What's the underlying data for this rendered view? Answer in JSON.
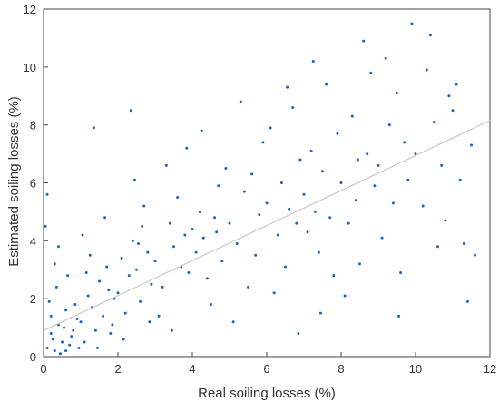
{
  "chart_data": {
    "type": "scatter",
    "xlabel": "Real soiling losses (%)",
    "ylabel": "Estimated soiling losses (%)",
    "color": "#1565c0",
    "xlim": [
      0,
      12
    ],
    "ylim": [
      0,
      12
    ],
    "xticks": [
      0,
      2,
      4,
      6,
      8,
      10,
      12
    ],
    "yticks": [
      0,
      2,
      4,
      6,
      8,
      10,
      12
    ],
    "x": [
      0.1,
      0.2,
      0.3,
      0.4,
      0.5,
      0.6,
      0.7,
      0.8,
      0.9,
      0.15,
      0.25,
      0.35,
      0.45,
      0.55,
      0.65,
      0.75,
      0.85,
      0.95,
      0.05,
      0.1,
      0.3,
      0.2,
      0.6,
      0.4,
      1.0,
      1.1,
      1.2,
      1.3,
      1.4,
      1.5,
      1.6,
      1.7,
      1.8,
      1.9,
      1.05,
      1.25,
      1.45,
      1.65,
      1.85,
      1.35,
      1.15,
      1.75,
      2.0,
      2.1,
      2.2,
      2.3,
      2.4,
      2.5,
      2.6,
      2.7,
      2.8,
      2.9,
      2.15,
      2.45,
      2.65,
      2.85,
      2.35,
      2.55,
      3.0,
      3.2,
      3.4,
      3.5,
      3.6,
      3.8,
      3.9,
      3.1,
      3.3,
      3.7,
      3.85,
      3.45,
      4.0,
      4.1,
      4.2,
      4.3,
      4.4,
      4.6,
      4.7,
      4.8,
      4.9,
      4.5,
      4.25,
      4.65,
      5.0,
      5.2,
      5.4,
      5.5,
      5.6,
      5.8,
      5.9,
      5.1,
      5.3,
      5.7,
      6.0,
      6.1,
      6.3,
      6.4,
      6.5,
      6.6,
      6.7,
      6.8,
      6.9,
      6.2,
      6.55,
      6.85,
      7.0,
      7.1,
      7.2,
      7.3,
      7.4,
      7.5,
      7.6,
      7.7,
      7.8,
      7.9,
      7.25,
      7.45,
      8.0,
      8.2,
      8.3,
      8.4,
      8.5,
      8.7,
      8.8,
      8.9,
      8.1,
      8.6,
      8.45,
      9.0,
      9.1,
      9.3,
      9.4,
      9.5,
      9.6,
      9.7,
      9.8,
      9.9,
      9.2,
      9.55,
      10.0,
      10.2,
      10.3,
      10.5,
      10.6,
      10.7,
      10.9,
      10.4,
      10.8,
      11.0,
      11.2,
      11.3,
      11.5,
      11.6,
      11.4,
      11.1
    ],
    "y": [
      0.3,
      0.8,
      0.2,
      1.1,
      0.5,
      1.6,
      0.4,
      0.9,
      1.3,
      1.9,
      0.6,
      2.4,
      0.1,
      1.0,
      2.8,
      0.7,
      1.8,
      0.3,
      4.5,
      5.6,
      3.2,
      1.4,
      0.2,
      3.8,
      1.2,
      0.5,
      2.1,
      1.7,
      0.9,
      2.6,
      1.4,
      3.1,
      0.8,
      2.0,
      4.2,
      3.5,
      0.3,
      4.8,
      1.1,
      7.9,
      2.9,
      2.3,
      2.2,
      3.4,
      1.5,
      2.8,
      4.0,
      3.0,
      1.9,
      5.2,
      3.6,
      2.5,
      0.6,
      6.1,
      4.5,
      1.2,
      8.5,
      3.9,
      3.3,
      2.4,
      4.6,
      3.8,
      5.5,
      4.2,
      2.9,
      1.4,
      6.6,
      3.1,
      7.2,
      0.9,
      4.4,
      3.6,
      5.0,
      4.1,
      2.7,
      4.8,
      5.9,
      3.3,
      6.5,
      1.8,
      7.8,
      4.3,
      4.6,
      3.9,
      5.7,
      2.4,
      6.3,
      4.9,
      7.4,
      1.2,
      8.8,
      3.5,
      5.3,
      7.9,
      4.2,
      6.0,
      3.1,
      5.1,
      8.6,
      4.6,
      6.8,
      2.2,
      9.3,
      0.8,
      5.6,
      4.3,
      7.1,
      5.0,
      3.6,
      6.4,
      9.4,
      4.8,
      2.8,
      7.7,
      10.2,
      1.5,
      6.0,
      4.6,
      8.3,
      5.4,
      3.2,
      7.0,
      9.8,
      5.9,
      2.1,
      10.9,
      6.8,
      6.6,
      4.1,
      8.0,
      5.3,
      9.1,
      2.9,
      7.4,
      6.1,
      11.5,
      10.3,
      1.4,
      7.0,
      5.2,
      9.9,
      8.1,
      3.8,
      6.6,
      9.0,
      11.1,
      4.7,
      8.5,
      6.1,
      3.9,
      7.3,
      3.5,
      1.9,
      9.4
    ],
    "trend_line": {
      "x": [
        0,
        12
      ],
      "y": [
        0.9,
        8.15
      ],
      "color": "#c8c8c8"
    }
  }
}
